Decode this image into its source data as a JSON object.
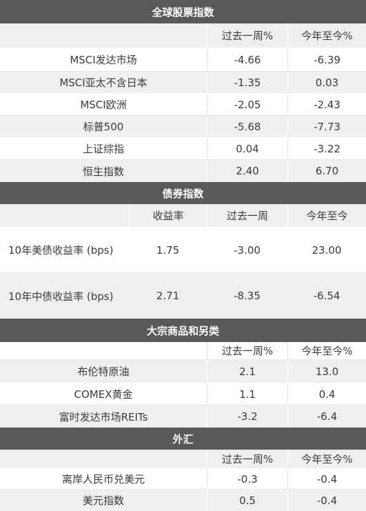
{
  "sections": [
    {
      "title": "全球股票指数",
      "columns": [
        "过去一周%",
        "今年至今%"
      ],
      "rows": [
        [
          "MSCI发达市场",
          "-4.66",
          "-6.39"
        ],
        [
          "MSCI亚太不含日本",
          "-1.35",
          "0.03"
        ],
        [
          "MSCI欧洲",
          "-2.05",
          "-2.43"
        ],
        [
          "标普500",
          "-5.68",
          "-7.73"
        ],
        [
          "上证综指",
          "0.04",
          "-3.22"
        ],
        [
          "恒生指数",
          "2.40",
          "6.70"
        ]
      ]
    },
    {
      "title": "债券指数",
      "columns": [
        "收益率",
        "过去一周",
        "今年至今"
      ],
      "rows": [
        [
          "10年美债收益率 (bps)",
          "1.75",
          "-3.00",
          "23.00"
        ],
        [
          "10年中债收益率 (bps)",
          "2.71",
          "-8.35",
          "-6.54"
        ]
      ]
    },
    {
      "title": "大宗商品和另类",
      "columns": [
        "过去一周%",
        "今年至今%"
      ],
      "rows": [
        [
          "布伦特原油",
          "2.1",
          "13.0"
        ],
        [
          "COMEX黄金",
          "1.1",
          "0.4"
        ],
        [
          "富时发达市场REITs",
          "-3.2",
          "-6.4"
        ]
      ]
    },
    {
      "title": "外汇",
      "columns": [
        "过去一周%",
        "今年至今%"
      ],
      "rows": [
        [
          "离岸人民币兑美元",
          "-0.3",
          "-0.4"
        ],
        [
          "美元指数",
          "0.5",
          "-0.4"
        ]
      ]
    }
  ]
}
